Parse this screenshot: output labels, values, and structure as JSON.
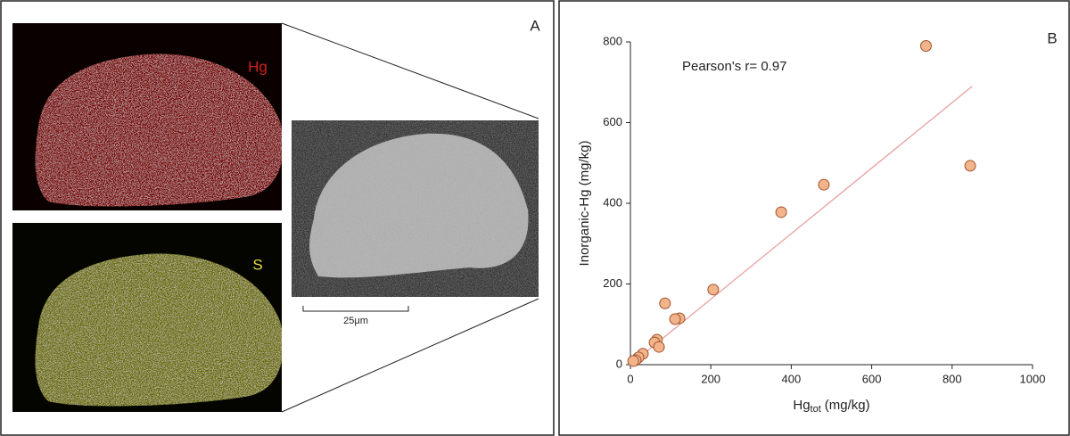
{
  "panel_a": {
    "label": "A",
    "maps": [
      "Hg",
      "S"
    ],
    "scale_bar": "25μm"
  },
  "chart_data": {
    "type": "scatter",
    "panel_label": "B",
    "annotation": "Pearson's r= 0.97",
    "x_label": [
      "Hg",
      "tot",
      "(mg/kg)"
    ],
    "y_label": "Inorganic-Hg (mg/kg)",
    "color": "#f2b48a",
    "edge_color": "#a0522d",
    "x": [
      735,
      845,
      481,
      375,
      206,
      86,
      122,
      111,
      66,
      60,
      71,
      31,
      20,
      13,
      7
    ],
    "values": [
      790,
      493,
      446,
      378,
      186,
      152,
      115,
      113,
      62,
      55,
      44,
      27,
      18,
      11,
      9
    ],
    "fit_line": {
      "x": [
        0,
        850
      ],
      "y": [
        0,
        690
      ],
      "color": "#e8a0a0"
    },
    "xlim": [
      0,
      1000
    ],
    "xticks": [
      0,
      200,
      400,
      600,
      800,
      1000
    ],
    "ylim": [
      0,
      800
    ],
    "yticks": [
      0,
      200,
      400,
      600,
      800
    ]
  }
}
